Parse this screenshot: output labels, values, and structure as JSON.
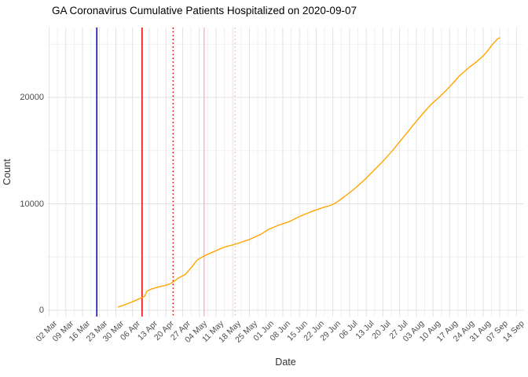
{
  "title": "GA Coronavirus Cumulative Patients Hospitalized on 2020-09-07",
  "chart_data": {
    "type": "line",
    "title": "GA Coronavirus Cumulative Patients Hospitalized on 2020-09-07",
    "xlabel": "Date",
    "ylabel": "Count",
    "x_range": [
      "2020-03-02",
      "2020-09-14"
    ],
    "ylim": [
      0,
      26500
    ],
    "grid": "on",
    "legend": "none",
    "y_ticks": [
      0,
      10000,
      20000
    ],
    "y_tick_labels": [
      "0",
      "10000",
      "20000"
    ],
    "y_minor_ticks": [
      5000,
      15000,
      25000
    ],
    "x_tick_start": "2020-03-02",
    "x_tick_step_days": 7,
    "x_tick_labels": [
      "02 Mar",
      "09 Mar",
      "16 Mar",
      "23 Mar",
      "30 Mar",
      "06 Apr",
      "13 Apr",
      "20 Apr",
      "27 Apr",
      "04 May",
      "11 May",
      "18 May",
      "25 May",
      "01 Jun",
      "08 Jun",
      "15 Jun",
      "22 Jun",
      "29 Jun",
      "06 Jul",
      "13 Jul",
      "20 Jul",
      "27 Jul",
      "03 Aug",
      "10 Aug",
      "17 Aug",
      "24 Aug",
      "31 Aug",
      "07 Sep",
      "14 Sep"
    ],
    "series": [
      {
        "name": "cumulative-hospitalized",
        "color": "#FFA500",
        "points": [
          [
            "2020-03-31",
            300
          ],
          [
            "2020-04-04",
            620
          ],
          [
            "2020-04-07",
            900
          ],
          [
            "2020-04-09",
            1100
          ],
          [
            "2020-04-11",
            1300
          ],
          [
            "2020-04-12",
            1800
          ],
          [
            "2020-04-14",
            2000
          ],
          [
            "2020-04-17",
            2200
          ],
          [
            "2020-04-20",
            2350
          ],
          [
            "2020-04-22",
            2500
          ],
          [
            "2020-04-25",
            3000
          ],
          [
            "2020-04-28",
            3350
          ],
          [
            "2020-05-01",
            4100
          ],
          [
            "2020-05-03",
            4700
          ],
          [
            "2020-05-06",
            5100
          ],
          [
            "2020-05-09",
            5400
          ],
          [
            "2020-05-14",
            5900
          ],
          [
            "2020-05-19",
            6200
          ],
          [
            "2020-05-25",
            6650
          ],
          [
            "2020-05-30",
            7150
          ],
          [
            "2020-06-02",
            7600
          ],
          [
            "2020-06-07",
            8050
          ],
          [
            "2020-06-11",
            8350
          ],
          [
            "2020-06-14",
            8700
          ],
          [
            "2020-06-17",
            9000
          ],
          [
            "2020-06-21",
            9350
          ],
          [
            "2020-06-25",
            9650
          ],
          [
            "2020-06-28",
            9850
          ],
          [
            "2020-06-30",
            10050
          ],
          [
            "2020-07-04",
            10700
          ],
          [
            "2020-07-08",
            11400
          ],
          [
            "2020-07-12",
            12200
          ],
          [
            "2020-07-16",
            13100
          ],
          [
            "2020-07-20",
            14000
          ],
          [
            "2020-07-24",
            15000
          ],
          [
            "2020-07-28",
            16100
          ],
          [
            "2020-08-01",
            17200
          ],
          [
            "2020-08-05",
            18300
          ],
          [
            "2020-08-09",
            19300
          ],
          [
            "2020-08-13",
            20100
          ],
          [
            "2020-08-17",
            21000
          ],
          [
            "2020-08-21",
            22000
          ],
          [
            "2020-08-25",
            22800
          ],
          [
            "2020-08-28",
            23300
          ],
          [
            "2020-08-31",
            23900
          ],
          [
            "2020-09-02",
            24400
          ],
          [
            "2020-09-04",
            25000
          ],
          [
            "2020-09-06",
            25500
          ],
          [
            "2020-09-07",
            25600
          ]
        ]
      }
    ],
    "vlines": [
      {
        "date": "2020-03-22",
        "color": "#0000CD",
        "style": "solid",
        "name": "event-line-blue-solid"
      },
      {
        "date": "2020-04-10",
        "color": "#E00000",
        "style": "solid",
        "name": "event-line-red-solid"
      },
      {
        "date": "2020-04-23",
        "color": "#E00000",
        "style": "dotted",
        "name": "event-line-red-dotted"
      },
      {
        "date": "2020-05-06",
        "color": "#FFB6C1",
        "style": "solid",
        "name": "event-line-pink-solid"
      },
      {
        "date": "2020-05-19",
        "color": "#FFB6C1",
        "style": "dotted",
        "name": "event-line-pink-dotted"
      }
    ],
    "colors": {
      "line": "#FFA500",
      "grid_major": "#E2E2E2",
      "grid_minor": "#F0F0F0",
      "background": "#FFFFFF",
      "tick_text": "#4D4D4D",
      "title_text": "#000000"
    }
  }
}
